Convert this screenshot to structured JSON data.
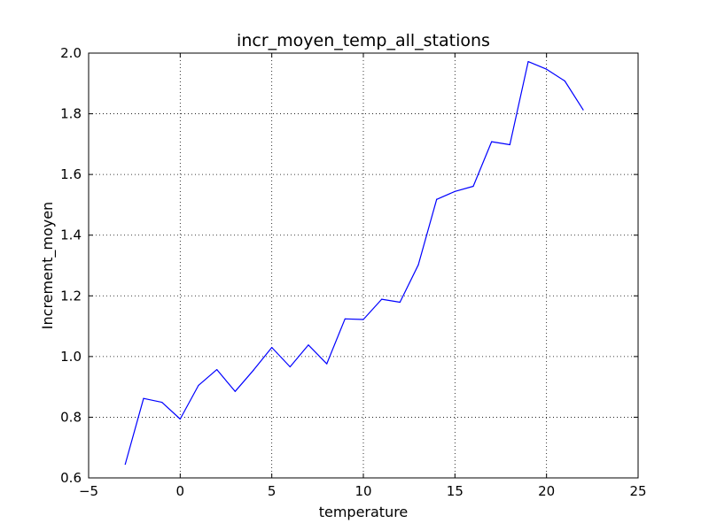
{
  "chart_data": {
    "type": "line",
    "title": "incr_moyen_temp_all_stations",
    "xlabel": "temperature",
    "ylabel": "Increment_moyen",
    "xlim": [
      -5,
      25
    ],
    "ylim": [
      0.6,
      2.0
    ],
    "xticks": [
      -5,
      0,
      5,
      10,
      15,
      20,
      25
    ],
    "yticks": [
      0.6,
      0.8,
      1.0,
      1.2,
      1.4,
      1.6,
      1.8,
      2.0
    ],
    "xtick_labels": [
      "−5",
      "0",
      "5",
      "10",
      "15",
      "20",
      "25"
    ],
    "ytick_labels": [
      "0.6",
      "0.8",
      "1.0",
      "1.2",
      "1.4",
      "1.6",
      "1.8",
      "2.0"
    ],
    "grid": true,
    "line_color": "#0000ff",
    "series": [
      {
        "x": [
          -3,
          -2,
          -1,
          0,
          1,
          2,
          3,
          4,
          5,
          6,
          7,
          8,
          9,
          10,
          11,
          12,
          13,
          14,
          15,
          16,
          17,
          18,
          19,
          20,
          21,
          22
        ],
        "values": [
          0.645,
          0.862,
          0.849,
          0.794,
          0.905,
          0.957,
          0.885,
          0.955,
          1.03,
          0.966,
          1.038,
          0.976,
          1.124,
          1.122,
          1.189,
          1.179,
          1.302,
          1.518,
          1.544,
          1.561,
          1.708,
          1.698,
          1.972,
          1.947,
          1.908,
          1.813
        ]
      }
    ]
  }
}
